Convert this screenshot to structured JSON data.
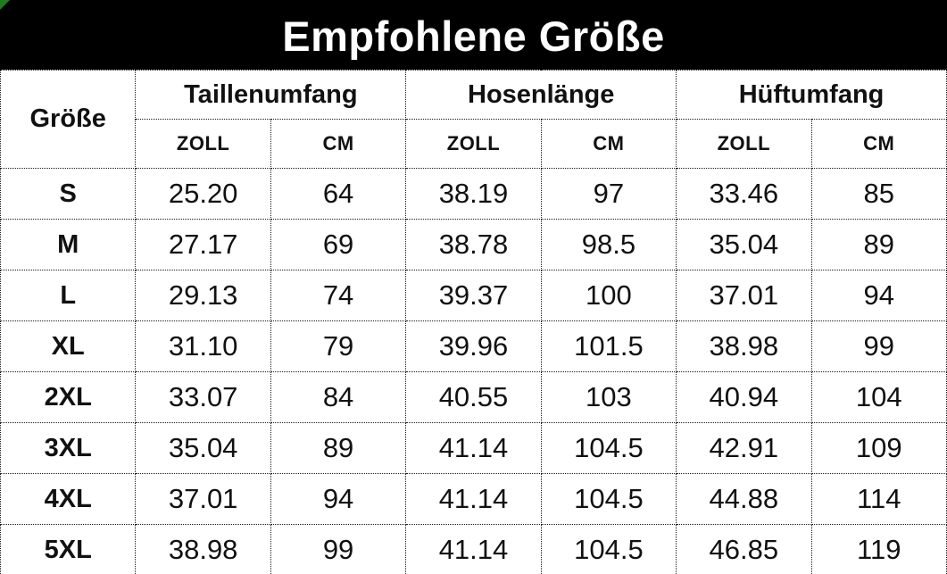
{
  "title": "Empfohlene Größe",
  "colors": {
    "banner_background": "#000000",
    "banner_text": "#ffffff",
    "table_text": "#111111",
    "border": "#1a1a1a",
    "corner_artifact_green": "#217a21"
  },
  "table": {
    "corner_header": "Größe",
    "group_headers": [
      "Taillenumfang",
      "Hosenlänge",
      "Hüftumfang"
    ],
    "unit_headers": [
      "ZOLL",
      "CM",
      "ZOLL",
      "CM",
      "ZOLL",
      "CM"
    ],
    "rows": [
      {
        "size": "S",
        "values": [
          "25.20",
          "64",
          "38.19",
          "97",
          "33.46",
          "85"
        ]
      },
      {
        "size": "M",
        "values": [
          "27.17",
          "69",
          "38.78",
          "98.5",
          "35.04",
          "89"
        ]
      },
      {
        "size": "L",
        "values": [
          "29.13",
          "74",
          "39.37",
          "100",
          "37.01",
          "94"
        ]
      },
      {
        "size": "XL",
        "values": [
          "31.10",
          "79",
          "39.96",
          "101.5",
          "38.98",
          "99"
        ]
      },
      {
        "size": "2XL",
        "values": [
          "33.07",
          "84",
          "40.55",
          "103",
          "40.94",
          "104"
        ]
      },
      {
        "size": "3XL",
        "values": [
          "35.04",
          "89",
          "41.14",
          "104.5",
          "42.91",
          "109"
        ]
      },
      {
        "size": "4XL",
        "values": [
          "37.01",
          "94",
          "41.14",
          "104.5",
          "44.88",
          "114"
        ]
      },
      {
        "size": "5XL",
        "values": [
          "38.98",
          "99",
          "41.14",
          "104.5",
          "46.85",
          "119"
        ]
      }
    ]
  },
  "chart_data": {
    "type": "table",
    "title": "Empfohlene Größe",
    "columns": [
      "Größe",
      "Taillenumfang ZOLL",
      "Taillenumfang CM",
      "Hosenlänge ZOLL",
      "Hosenlänge CM",
      "Hüftumfang ZOLL",
      "Hüftumfang CM"
    ],
    "rows": [
      [
        "S",
        25.2,
        64,
        38.19,
        97,
        33.46,
        85
      ],
      [
        "M",
        27.17,
        69,
        38.78,
        98.5,
        35.04,
        89
      ],
      [
        "L",
        29.13,
        74,
        39.37,
        100,
        37.01,
        94
      ],
      [
        "XL",
        31.1,
        79,
        39.96,
        101.5,
        38.98,
        99
      ],
      [
        "2XL",
        33.07,
        84,
        40.55,
        103,
        40.94,
        104
      ],
      [
        "3XL",
        35.04,
        89,
        41.14,
        104.5,
        42.91,
        109
      ],
      [
        "4XL",
        37.01,
        94,
        41.14,
        104.5,
        44.88,
        114
      ],
      [
        "5XL",
        38.98,
        99,
        41.14,
        104.5,
        46.85,
        119
      ]
    ]
  }
}
